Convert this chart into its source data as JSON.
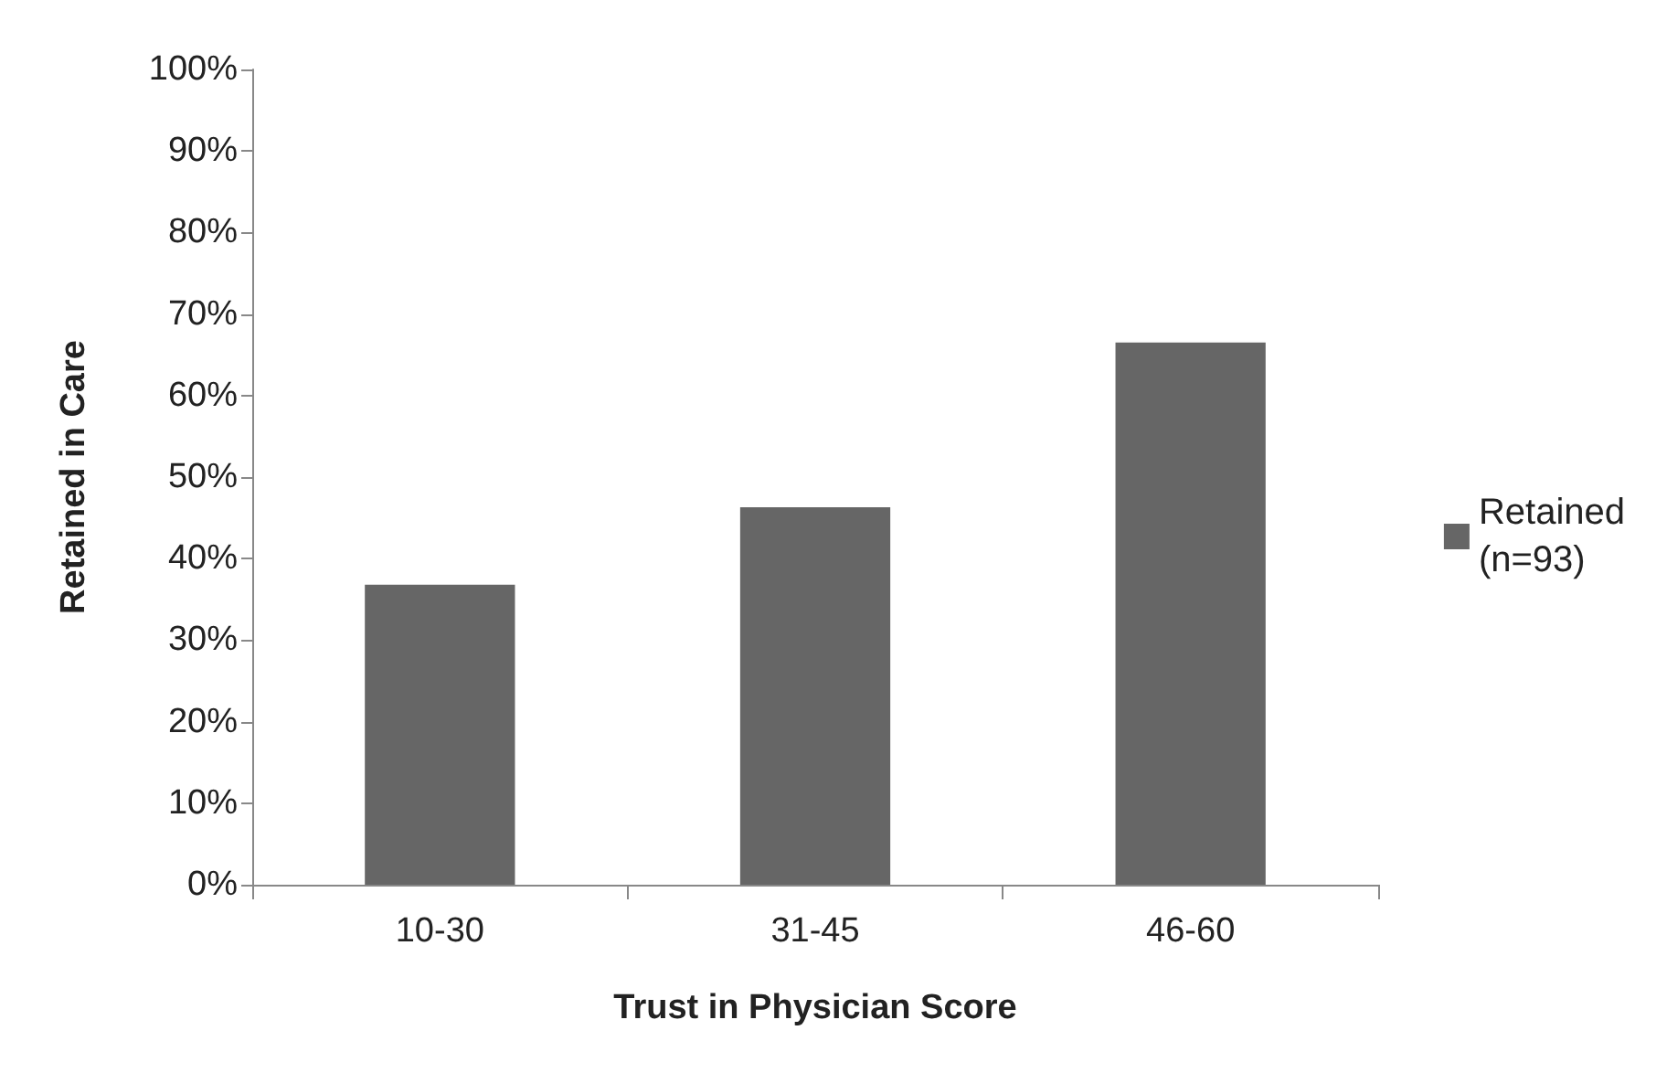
{
  "chart_data": {
    "type": "bar",
    "xlabel": "Trust in Physician Score",
    "ylabel": "Retained in Care",
    "categories": [
      "10-30",
      "31-45",
      "46-60"
    ],
    "series": [
      {
        "name": "Retained\n(n=93)",
        "color": "#666666",
        "values": [
          36.8,
          46.3,
          66.5
        ]
      }
    ],
    "ylim": [
      0,
      100
    ],
    "yticks": [
      {
        "value": 0,
        "label": "0%"
      },
      {
        "value": 10,
        "label": "10%"
      },
      {
        "value": 20,
        "label": "20%"
      },
      {
        "value": 30,
        "label": "30%"
      },
      {
        "value": 40,
        "label": "40%"
      },
      {
        "value": 50,
        "label": "50%"
      },
      {
        "value": 60,
        "label": "60%"
      },
      {
        "value": 70,
        "label": "70%"
      },
      {
        "value": 80,
        "label": "80%"
      },
      {
        "value": 90,
        "label": "90%"
      },
      {
        "value": 100,
        "label": "100%"
      }
    ],
    "grid": false,
    "legend": "right"
  }
}
